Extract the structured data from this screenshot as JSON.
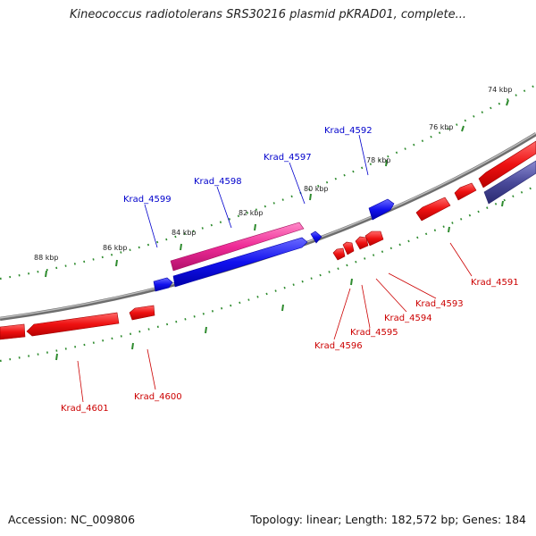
{
  "title": "Kineococcus radiotolerans SRS30216 plasmid pKRAD01, complete...",
  "footer": {
    "accession": "Accession: NC_009806",
    "summary": "Topology: linear; Length: 182,572 bp; Genes: 184"
  },
  "colors": {
    "backbone": "#8c8c8c",
    "tick": "#2e8b2e",
    "forward_label": "#0000cc",
    "reverse_label": "#cc0000",
    "gene_red": "#ee1111",
    "gene_blue": "#1111ee",
    "gene_pink": "#ee2a96",
    "gene_slate": "#4a4a9a"
  },
  "ruler_labels": [
    "74 kbp",
    "76 kbp",
    "78 kbp",
    "80 kbp",
    "82 kbp",
    "84 kbp",
    "86 kbp",
    "88 kbp"
  ],
  "forward_labels": [
    "Krad_4592",
    "Krad_4597",
    "Krad_4598",
    "Krad_4599"
  ],
  "reverse_labels": [
    "Krad_4591",
    "Krad_4593",
    "Krad_4594",
    "Krad_4595",
    "Krad_4596",
    "Krad_4600",
    "Krad_4601"
  ]
}
